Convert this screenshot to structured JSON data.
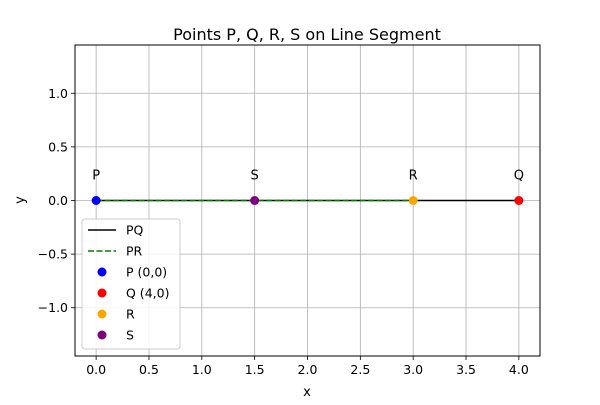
{
  "chart_data": {
    "type": "line",
    "title": "Points P, Q, R, S on Line Segment",
    "xlabel": "x",
    "ylabel": "y",
    "xlim": [
      -0.2,
      4.2
    ],
    "ylim": [
      -1.45,
      1.45
    ],
    "xticks": [
      "0.0",
      "0.5",
      "1.0",
      "1.5",
      "2.0",
      "2.5",
      "3.0",
      "3.5",
      "4.0"
    ],
    "yticks": [
      "−1.0",
      "−0.5",
      "0.0",
      "0.5",
      "1.0"
    ],
    "grid": true,
    "legend_position": "lower-left",
    "lines": [
      {
        "name": "PQ",
        "x": [
          0,
          4
        ],
        "y": [
          0,
          0
        ],
        "color": "#000000",
        "style": "solid"
      },
      {
        "name": "PR",
        "x": [
          0,
          3
        ],
        "y": [
          0,
          0
        ],
        "color": "#008000",
        "style": "dashed"
      }
    ],
    "points": [
      {
        "name": "P (0,0)",
        "label": "P",
        "x": 0,
        "y": 0,
        "color": "#0000ff"
      },
      {
        "name": "Q (4,0)",
        "label": "Q",
        "x": 4,
        "y": 0,
        "color": "#ff0000"
      },
      {
        "name": "R",
        "label": "R",
        "x": 3,
        "y": 0,
        "color": "#ffa500"
      },
      {
        "name": "S",
        "label": "S",
        "x": 1.5,
        "y": 0,
        "color": "#800080"
      }
    ]
  }
}
